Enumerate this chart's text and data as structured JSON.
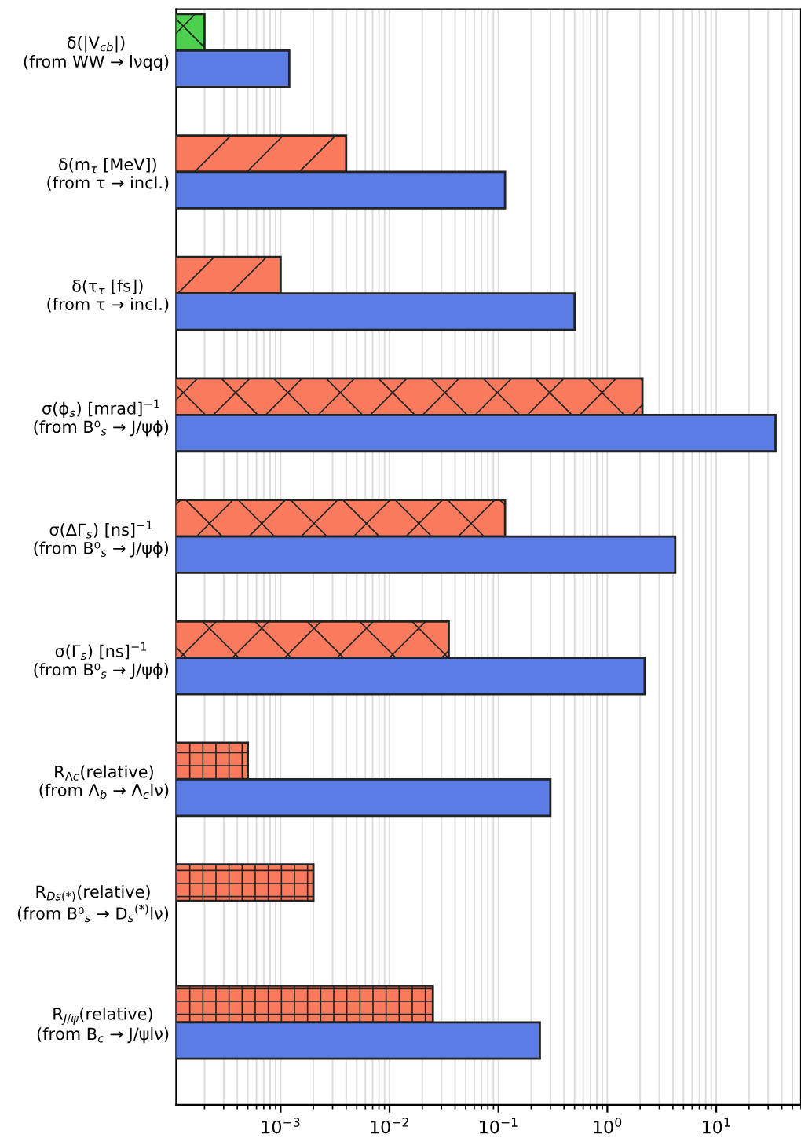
{
  "chart_data": {
    "type": "bar",
    "orientation": "horizontal",
    "log": "x",
    "grid": "x",
    "categories": [
      "δ(|V$_{cb}$|)\n(from WW → lνqq)",
      "δ(m$_{τ}$ [MeV])\n(from τ → incl.)",
      "δ(τ$_{τ}$ [fs])\n(from τ → incl.)",
      "σ(ϕ$_{s}$) [mrad]$^{−1}$\n(from B⁰$_{s}$ → J/ψϕ)",
      "σ(ΔΓ$_{s}$) [ns]$^{−1}$\n(from B⁰$_{s}$ → J/ψϕ)",
      "σ(Γ$_{s}$) [ns]$^{−1}$\n(from B⁰$_{s}$ → J/ψϕ)",
      "R$_{Λc}$(relative)\n(from Λ$_{b}$ → Λ$_{c}$lν)",
      "R$_{Ds(*)}$(relative)\n(from B⁰$_{s}$ → D$_{s}$$^{(*)}$lν)",
      "R$_{J/ψ}$(relative)\n(from B$_{c}$ → J/ψlν)"
    ],
    "series": [
      {
        "colors": [
          "#4fcf4f",
          "#fa7a5e",
          "#fa7a5e",
          "#fa7a5e",
          "#fa7a5e",
          "#fa7a5e",
          "#fa7a5e",
          "#fa7a5e",
          "#fa7a5e"
        ],
        "values": [
          0.0002,
          0.004,
          0.001,
          2.1,
          0.115,
          0.035,
          0.0005,
          0.002,
          0.025
        ]
      },
      {
        "color": "#5b7de3",
        "values": [
          0.0012,
          0.115,
          0.5,
          35,
          4.2,
          2.2,
          0.3,
          null,
          0.24
        ]
      }
    ],
    "xlim": [
      0.00011,
      60
    ],
    "xticks": [
      {
        "value": 0.001,
        "label": "10$^{−3}$"
      },
      {
        "value": 0.01,
        "label": "10$^{−2}$"
      },
      {
        "value": 0.1,
        "label": "10$^{−1}$"
      },
      {
        "value": 1,
        "label": "10$^{0}$"
      },
      {
        "value": 10,
        "label": "10$^{1}$"
      }
    ]
  }
}
